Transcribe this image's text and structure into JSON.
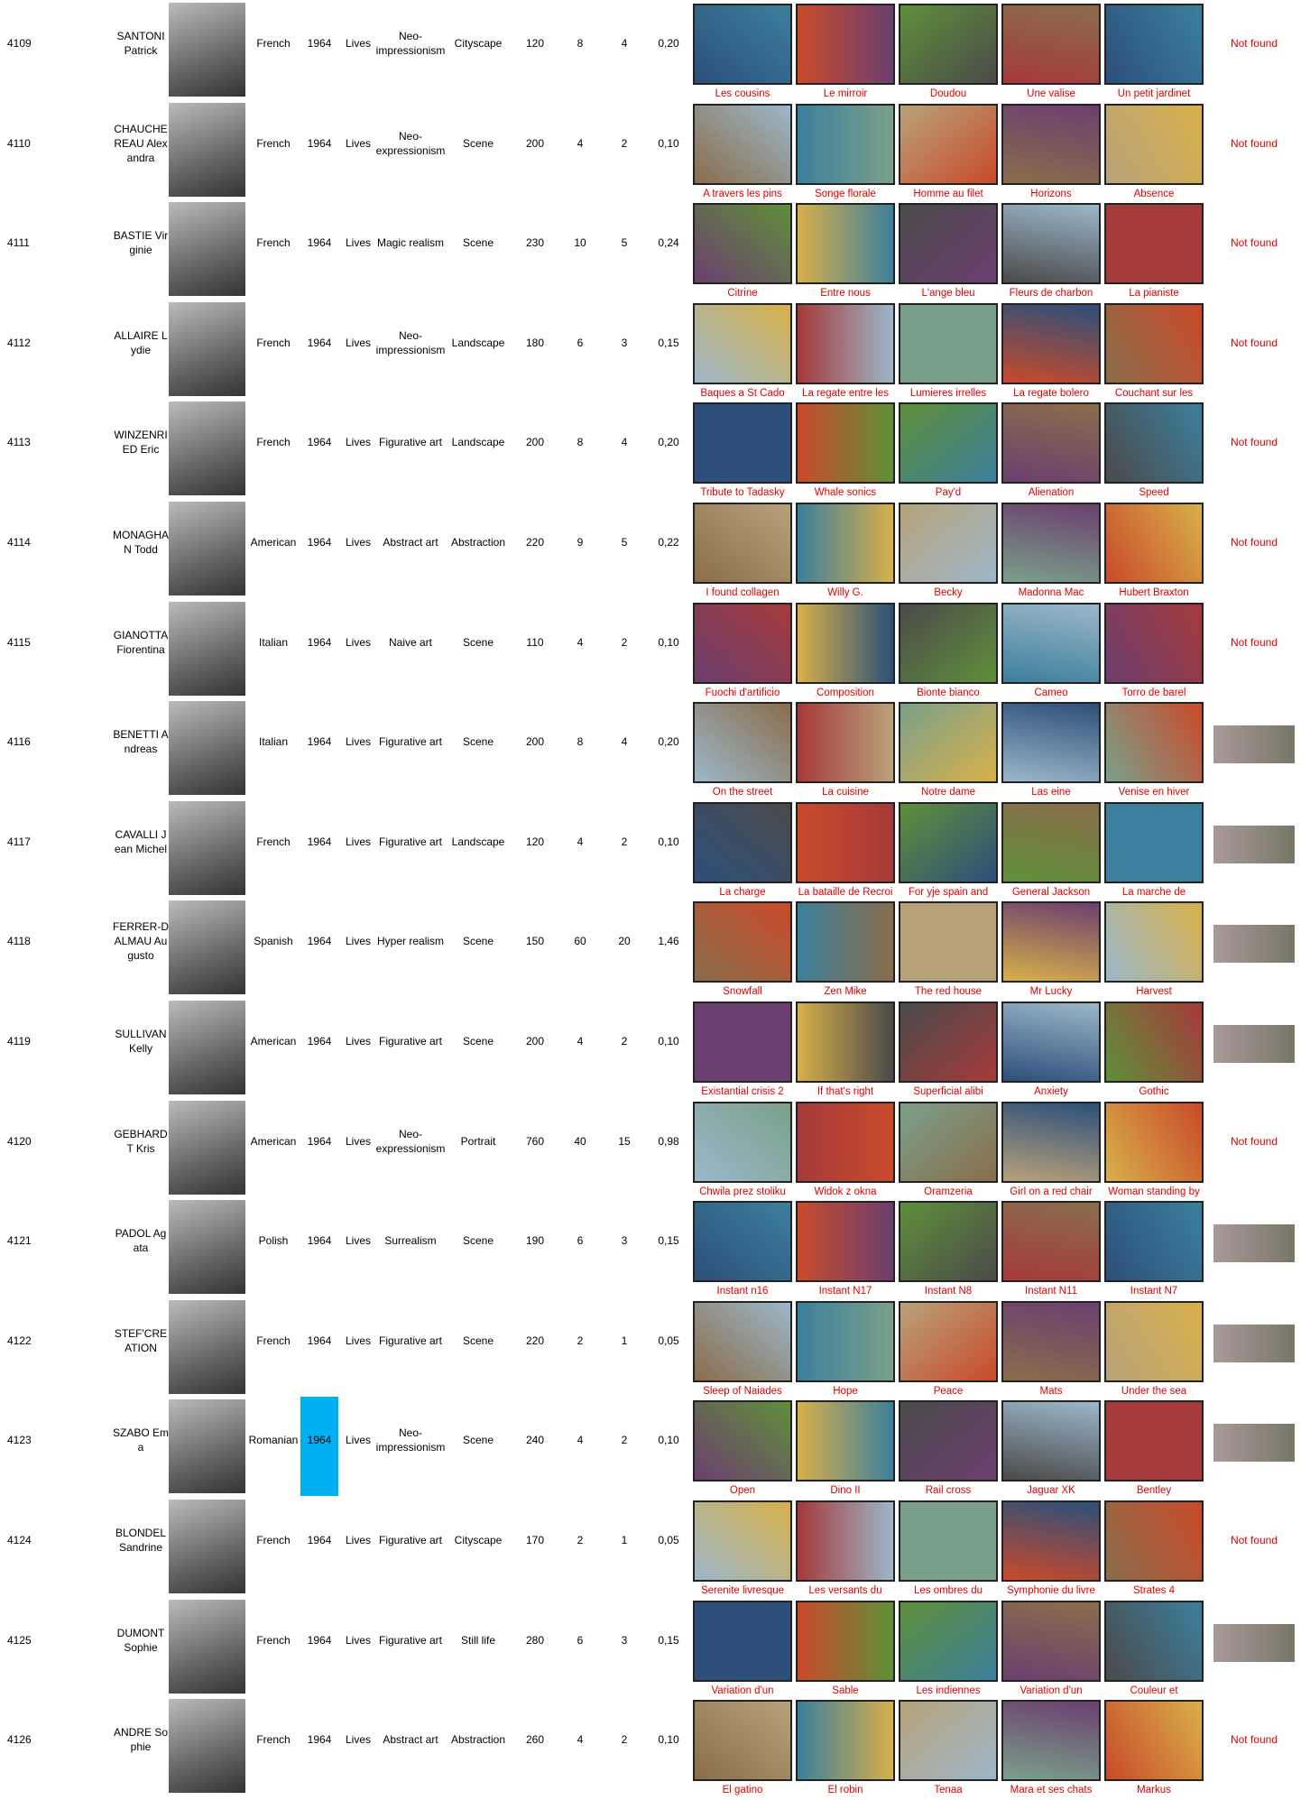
{
  "rows": [
    {
      "id": 4109,
      "name": "SANTONI Patrick",
      "nationality": "French",
      "year": 1964,
      "status": "Lives",
      "movement": "Neo-impressionism",
      "genre": "Cityscape",
      "price": 120,
      "works": 8,
      "sold": 4,
      "ratio": "0,20",
      "paintings": [
        "Les cousins",
        "Le mirroir",
        "Doudou",
        "Une valise",
        "Un petit jardinet"
      ],
      "signature": "Not found"
    },
    {
      "id": 4110,
      "name": "CHAUCHEREAU Alexandra",
      "nationality": "French",
      "year": 1964,
      "status": "Lives",
      "movement": "Neo-expressionism",
      "genre": "Scene",
      "price": 200,
      "works": 4,
      "sold": 2,
      "ratio": "0,10",
      "paintings": [
        "A travers les pins",
        "Songe florale",
        "Homme au filet",
        "Horizons",
        "Absence"
      ],
      "signature": "Not found"
    },
    {
      "id": 4111,
      "name": "BASTIE Virginie",
      "nationality": "French",
      "year": 1964,
      "status": "Lives",
      "movement": "Magic realism",
      "genre": "Scene",
      "price": 230,
      "works": 10,
      "sold": 5,
      "ratio": "0,24",
      "paintings": [
        "Citrine",
        "Entre nous",
        "L'ange bleu",
        "Fleurs de charbon",
        "La pianiste"
      ],
      "signature": "Not found"
    },
    {
      "id": 4112,
      "name": "ALLAIRE Lydie",
      "nationality": "French",
      "year": 1964,
      "status": "Lives",
      "movement": "Neo-impressionism",
      "genre": "Landscape",
      "price": 180,
      "works": 6,
      "sold": 3,
      "ratio": "0,15",
      "paintings": [
        "Baques a St Cado",
        "La regate entre les",
        "Lumieres irrelles",
        "La regate bolero",
        "Couchant sur les"
      ],
      "signature": "Not found"
    },
    {
      "id": 4113,
      "name": "WINZENRIED Eric",
      "nationality": "French",
      "year": 1964,
      "status": "Lives",
      "movement": "Figurative art",
      "genre": "Landscape",
      "price": 200,
      "works": 8,
      "sold": 4,
      "ratio": "0,20",
      "paintings": [
        "Tribute to Tadasky",
        "Whale sonics",
        "Pay'd",
        "Alienation",
        "Speed"
      ],
      "signature": "Not found"
    },
    {
      "id": 4114,
      "name": "MONAGHAN Todd",
      "nationality": "American",
      "year": 1964,
      "status": "Lives",
      "movement": "Abstract art",
      "genre": "Abstraction",
      "price": 220,
      "works": 9,
      "sold": 5,
      "ratio": "0,22",
      "paintings": [
        "I found collagen",
        "Willy G.",
        "Becky",
        "Madonna Mac",
        "Hubert Braxton"
      ],
      "signature": "Not found"
    },
    {
      "id": 4115,
      "name": "GIANOTTA Fiorentina",
      "nationality": "Italian",
      "year": 1964,
      "status": "Lives",
      "movement": "Naive art",
      "genre": "Scene",
      "price": 110,
      "works": 4,
      "sold": 2,
      "ratio": "0,10",
      "paintings": [
        "Fuochi d'artificio",
        "Composition",
        "Bionte bianco",
        "Cameo",
        "Torro de barel"
      ],
      "signature": "Not found"
    },
    {
      "id": 4116,
      "name": "BENETTI Andreas",
      "nationality": "Italian",
      "year": 1964,
      "status": "Lives",
      "movement": "Figurative art",
      "genre": "Scene",
      "price": 200,
      "works": 8,
      "sold": 4,
      "ratio": "0,20",
      "paintings": [
        "On the street",
        "La cuisine",
        "Notre dame",
        "Las eine",
        "Venise en hiver"
      ]
    },
    {
      "id": 4117,
      "name": "CAVALLI Jean Michel",
      "nationality": "French",
      "year": 1964,
      "status": "Lives",
      "movement": "Figurative art",
      "genre": "Landscape",
      "price": 120,
      "works": 4,
      "sold": 2,
      "ratio": "0,10",
      "paintings": [
        "La charge",
        "La bataille de Recroi",
        "For yje spain and",
        "General Jackson",
        "La marche de"
      ]
    },
    {
      "id": 4118,
      "name": "FERRER-DALMAU Augusto",
      "nationality": "Spanish",
      "year": 1964,
      "status": "Lives",
      "movement": "Hyper realism",
      "genre": "Scene",
      "price": 150,
      "works": 60,
      "sold": 20,
      "ratio": "1,46",
      "paintings": [
        "Snowfall",
        "Zen Mike",
        "The red house",
        "Mr Lucky",
        "Harvest"
      ]
    },
    {
      "id": 4119,
      "name": "SULLIVAN Kelly",
      "nationality": "American",
      "year": 1964,
      "status": "Lives",
      "movement": "Figurative art",
      "genre": "Scene",
      "price": 200,
      "works": 4,
      "sold": 2,
      "ratio": "0,10",
      "paintings": [
        "Existantial crisis 2",
        "If that's right",
        "Superficial alibi",
        "Anxiety",
        "Gothic"
      ]
    },
    {
      "id": 4120,
      "name": "GEBHARDT Kris",
      "nationality": "American",
      "year": 1964,
      "status": "Lives",
      "movement": "Neo-expressionism",
      "genre": "Portrait",
      "price": 760,
      "works": 40,
      "sold": 15,
      "ratio": "0,98",
      "paintings": [
        "Chwila prez stoliku",
        "Widok z okna",
        "Oramzeria",
        "Girl on a red chair",
        "Woman standing by"
      ],
      "signature": "Not found"
    },
    {
      "id": 4121,
      "name": "PADOL Agata",
      "nationality": "Polish",
      "year": 1964,
      "status": "Lives",
      "movement": "Surrealism",
      "genre": "Scene",
      "price": 190,
      "works": 6,
      "sold": 3,
      "ratio": "0,15",
      "paintings": [
        "Instant n16",
        "Instant N17",
        "Instant N8",
        "Instant N11",
        "Instant N7"
      ]
    },
    {
      "id": 4122,
      "name": "STEF'CREATION",
      "nationality": "French",
      "year": 1964,
      "status": "Lives",
      "movement": "Figurative art",
      "genre": "Scene",
      "price": 220,
      "works": 2,
      "sold": 1,
      "ratio": "0,05",
      "paintings": [
        "Sleep of Naiades",
        "Hope",
        "Peace",
        "Mats",
        "Under the sea"
      ]
    },
    {
      "id": 4123,
      "name": "SZABO Ema",
      "nationality": "Romanian",
      "year": 1964,
      "year_highlighted": true,
      "status": "Lives",
      "movement": "Neo-impressionism",
      "genre": "Scene",
      "price": 240,
      "works": 4,
      "sold": 2,
      "ratio": "0,10",
      "paintings": [
        "Open",
        "Dino II",
        "Rail cross",
        "Jaguar XK",
        "Bentley"
      ]
    },
    {
      "id": 4124,
      "name": "BLONDEL Sandrine",
      "nationality": "French",
      "year": 1964,
      "status": "Lives",
      "movement": "Figurative art",
      "genre": "Cityscape",
      "price": 170,
      "works": 2,
      "sold": 1,
      "ratio": "0,05",
      "paintings": [
        "Serenite livresque",
        "Les versants du",
        "Les ombres du",
        "Symphonie du livre",
        "Strates 4"
      ],
      "signature": "Not found"
    },
    {
      "id": 4125,
      "name": "DUMONT Sophie",
      "nationality": "French",
      "year": 1964,
      "status": "Lives",
      "movement": "Figurative art",
      "genre": "Still life",
      "price": 280,
      "works": 6,
      "sold": 3,
      "ratio": "0,15",
      "paintings": [
        "Variation d'un",
        "Sable",
        "Les indiennes",
        "Variation d'un",
        "Couleur et"
      ]
    },
    {
      "id": 4126,
      "name": "ANDRE Sophie",
      "nationality": "French",
      "year": 1964,
      "status": "Lives",
      "movement": "Abstract art",
      "genre": "Abstraction",
      "price": 260,
      "works": 4,
      "sold": 2,
      "ratio": "0,10",
      "paintings": [
        "El gatino",
        "El robin",
        "Tenaa",
        "Mara et ses chats",
        "Markus"
      ],
      "signature": "Not found"
    }
  ]
}
